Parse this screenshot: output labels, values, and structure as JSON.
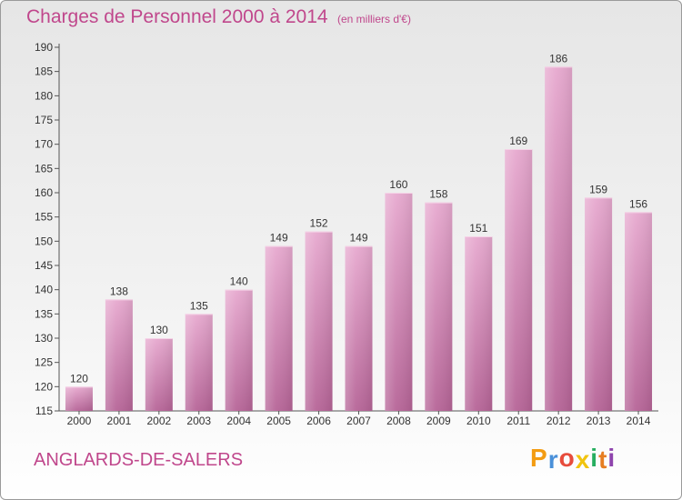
{
  "page": {
    "title": "Charges de Personnel 2000 à 2014",
    "subtitle": "(en milliers d'€)",
    "town": "ANGLARDS-DE-SALERS",
    "logo_letters": [
      {
        "char": "P",
        "color": "#f39c12"
      },
      {
        "char": "r",
        "color": "#4a90d9"
      },
      {
        "char": "o",
        "color": "#e74c3c"
      },
      {
        "char": "x",
        "color": "#f1c40f"
      },
      {
        "char": "i",
        "color": "#27ae60"
      },
      {
        "char": "t",
        "color": "#e67e22"
      },
      {
        "char": "i",
        "color": "#8e44ad"
      }
    ]
  },
  "chart_data": {
    "type": "bar",
    "categories": [
      "2000",
      "2001",
      "2002",
      "2003",
      "2004",
      "2005",
      "2006",
      "2007",
      "2008",
      "2009",
      "2010",
      "2011",
      "2012",
      "2013",
      "2014"
    ],
    "values": [
      120,
      138,
      130,
      135,
      140,
      149,
      152,
      149,
      160,
      158,
      151,
      169,
      186,
      159,
      156
    ],
    "ylim": [
      115,
      190
    ],
    "yticks": [
      115,
      120,
      125,
      130,
      135,
      140,
      145,
      150,
      155,
      160,
      165,
      170,
      175,
      180,
      185,
      190
    ],
    "grid": false,
    "bar_color": "#d88bb8"
  }
}
